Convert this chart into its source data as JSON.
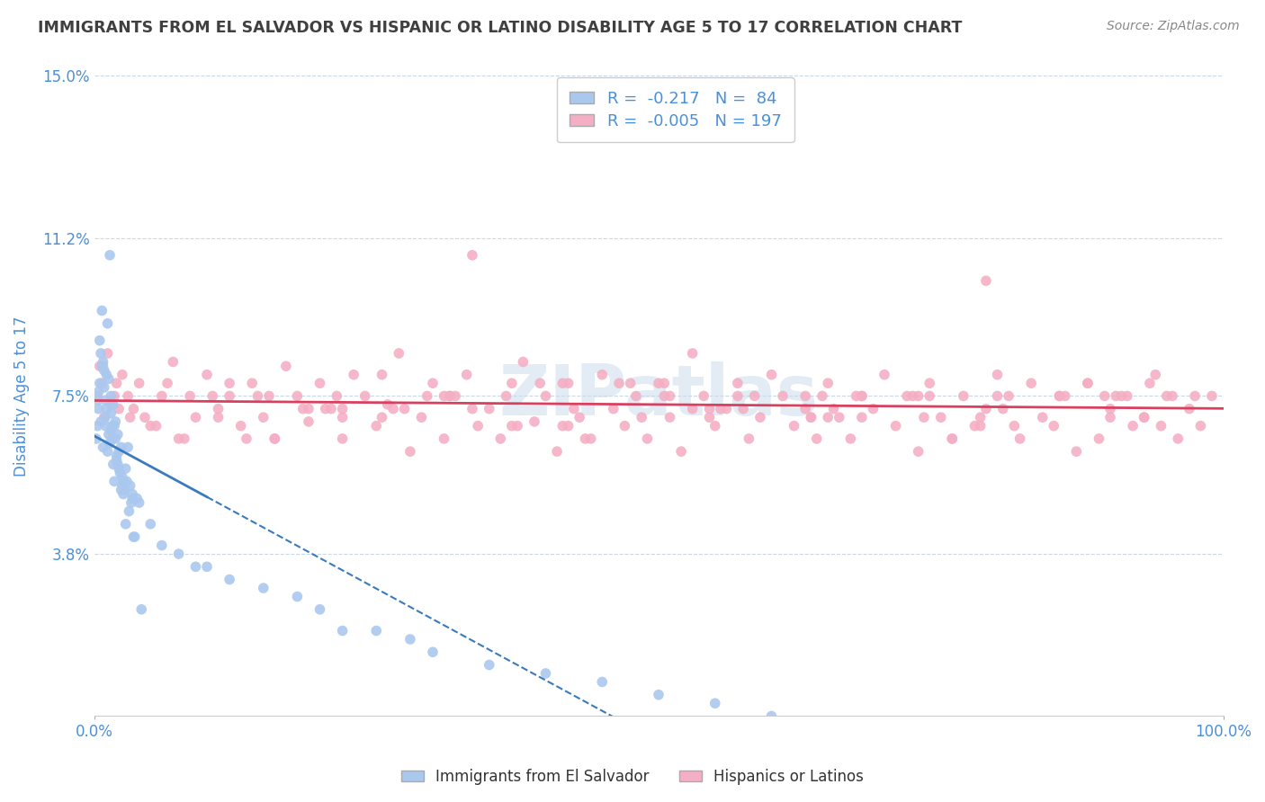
{
  "title": "IMMIGRANTS FROM EL SALVADOR VS HISPANIC OR LATINO DISABILITY AGE 5 TO 17 CORRELATION CHART",
  "source": "Source: ZipAtlas.com",
  "ylabel": "Disability Age 5 to 17",
  "xlim": [
    0,
    100
  ],
  "ylim": [
    0,
    15.0
  ],
  "yticks": [
    3.8,
    7.5,
    11.2,
    15.0
  ],
  "ytick_labels": [
    "3.8%",
    "7.5%",
    "11.2%",
    "15.0%"
  ],
  "xticks": [
    0,
    100
  ],
  "xtick_labels": [
    "0.0%",
    "100.0%"
  ],
  "blue_color": "#aac8ee",
  "pink_color": "#f4afc4",
  "blue_line_color": "#3a7abf",
  "pink_line_color": "#d94060",
  "blue_R": -0.217,
  "blue_N": 84,
  "pink_R": -0.005,
  "pink_N": 197,
  "legend_label_blue": "Immigrants from El Salvador",
  "legend_label_pink": "Hispanics or Latinos",
  "watermark": "ZIPatlas",
  "background_color": "#ffffff",
  "grid_color": "#c8d8e8",
  "title_color": "#404040",
  "tick_label_color": "#4a90d9",
  "blue_scatter_x": [
    0.2,
    0.3,
    0.3,
    0.4,
    0.4,
    0.5,
    0.5,
    0.6,
    0.6,
    0.7,
    0.7,
    0.8,
    0.8,
    0.9,
    0.9,
    1.0,
    1.0,
    1.0,
    1.1,
    1.1,
    1.2,
    1.2,
    1.3,
    1.3,
    1.4,
    1.4,
    1.5,
    1.5,
    1.5,
    1.6,
    1.6,
    1.7,
    1.7,
    1.8,
    1.8,
    1.9,
    1.9,
    2.0,
    2.0,
    2.1,
    2.1,
    2.2,
    2.2,
    2.3,
    2.4,
    2.4,
    2.5,
    2.5,
    2.6,
    2.6,
    2.7,
    2.8,
    2.8,
    2.9,
    3.0,
    3.1,
    3.2,
    3.3,
    3.4,
    3.4,
    3.5,
    3.6,
    3.8,
    4.0,
    4.2,
    5.0,
    6.0,
    7.5,
    9.0,
    10.0,
    12.0,
    15.0,
    18.0,
    20.0,
    22.0,
    25.0,
    28.0,
    30.0,
    35.0,
    40.0,
    45.0,
    50.0,
    55.0,
    60.0
  ],
  "blue_scatter_y": [
    6.5,
    7.4,
    6.8,
    7.6,
    7.2,
    7.8,
    8.8,
    8.5,
    6.9,
    8.2,
    9.5,
    8.3,
    6.3,
    7.7,
    8.1,
    7.0,
    7.4,
    6.8,
    7.2,
    8.0,
    6.2,
    9.2,
    7.9,
    6.6,
    6.4,
    10.8,
    7.5,
    6.7,
    7.1,
    6.5,
    6.8,
    7.3,
    5.9,
    5.5,
    6.8,
    6.9,
    6.5,
    6.1,
    6.0,
    6.6,
    5.9,
    5.8,
    6.2,
    5.7,
    5.3,
    6.3,
    5.6,
    5.4,
    5.5,
    5.2,
    5.3,
    5.8,
    4.5,
    5.5,
    6.3,
    4.8,
    5.4,
    5.0,
    5.1,
    5.2,
    4.2,
    4.2,
    5.1,
    5.0,
    2.5,
    4.5,
    4.0,
    3.8,
    3.5,
    3.5,
    3.2,
    3.0,
    2.8,
    2.5,
    2.0,
    2.0,
    1.8,
    1.5,
    1.2,
    1.0,
    0.8,
    0.5,
    0.3,
    0.0
  ],
  "pink_scatter_x": [
    0.3,
    0.5,
    0.7,
    0.9,
    1.2,
    1.5,
    2.0,
    2.5,
    3.0,
    3.5,
    4.0,
    5.0,
    6.0,
    7.0,
    8.0,
    9.0,
    10.0,
    11.0,
    12.0,
    13.0,
    14.0,
    15.0,
    16.0,
    17.0,
    18.0,
    19.0,
    20.0,
    21.0,
    22.0,
    23.0,
    24.0,
    25.0,
    26.0,
    27.0,
    28.0,
    29.0,
    30.0,
    31.0,
    32.0,
    33.0,
    34.0,
    35.0,
    36.0,
    37.0,
    38.0,
    39.0,
    40.0,
    41.0,
    42.0,
    43.0,
    44.0,
    45.0,
    46.0,
    47.0,
    48.0,
    49.0,
    50.0,
    51.0,
    52.0,
    53.0,
    54.0,
    55.0,
    56.0,
    57.0,
    58.0,
    59.0,
    60.0,
    61.0,
    62.0,
    63.0,
    64.0,
    65.0,
    66.0,
    67.0,
    68.0,
    69.0,
    70.0,
    71.0,
    72.0,
    73.0,
    74.0,
    75.0,
    76.0,
    77.0,
    78.0,
    79.0,
    80.0,
    81.0,
    82.0,
    83.0,
    84.0,
    85.0,
    86.0,
    87.0,
    88.0,
    89.0,
    90.0,
    91.0,
    92.0,
    93.0,
    94.0,
    95.0,
    96.0,
    97.0,
    98.0,
    99.0,
    0.8,
    1.8,
    3.2,
    5.5,
    8.5,
    12.0,
    16.0,
    20.5,
    25.5,
    31.0,
    37.0,
    43.5,
    50.5,
    57.5,
    65.0,
    73.0,
    81.5,
    90.5,
    2.2,
    6.5,
    13.5,
    22.0,
    31.5,
    42.0,
    53.0,
    64.5,
    76.0,
    88.0,
    4.5,
    10.5,
    19.0,
    29.5,
    41.5,
    54.5,
    67.5,
    80.5,
    93.5,
    7.5,
    15.5,
    25.5,
    37.5,
    51.0,
    65.5,
    80.0,
    94.5,
    11.0,
    21.5,
    33.5,
    47.5,
    63.0,
    78.5,
    93.0,
    14.5,
    27.5,
    41.5,
    57.0,
    73.5,
    89.5,
    18.5,
    33.5,
    50.5,
    68.0,
    85.5,
    22.0,
    39.5,
    58.5,
    78.5,
    97.5,
    26.5,
    46.5,
    68.0,
    90.0,
    31.5,
    54.5,
    79.0,
    36.5,
    63.5,
    91.5,
    42.5,
    74.0,
    48.5,
    85.5,
    55.5,
    95.5,
    63.5,
    72.5,
    82.0,
    92.0
  ],
  "pink_scatter_y": [
    7.5,
    8.2,
    7.8,
    7.0,
    8.5,
    7.3,
    7.8,
    8.0,
    7.5,
    7.2,
    7.8,
    6.8,
    7.5,
    8.3,
    6.5,
    7.0,
    8.0,
    7.2,
    7.5,
    6.8,
    7.8,
    7.0,
    6.5,
    8.2,
    7.5,
    6.9,
    7.8,
    7.2,
    6.5,
    8.0,
    7.5,
    6.8,
    7.3,
    8.5,
    6.2,
    7.0,
    7.8,
    6.5,
    7.5,
    8.0,
    6.8,
    7.2,
    6.5,
    7.8,
    8.3,
    6.9,
    7.5,
    6.2,
    7.8,
    7.0,
    6.5,
    8.0,
    7.2,
    6.8,
    7.5,
    6.5,
    7.8,
    7.0,
    6.2,
    8.5,
    7.5,
    6.8,
    7.2,
    7.8,
    6.5,
    7.0,
    8.0,
    7.5,
    6.8,
    7.2,
    6.5,
    7.8,
    7.0,
    6.5,
    7.5,
    7.2,
    8.0,
    6.8,
    7.5,
    6.2,
    7.8,
    7.0,
    6.5,
    7.5,
    6.8,
    7.2,
    8.0,
    7.5,
    6.5,
    7.8,
    7.0,
    6.8,
    7.5,
    6.2,
    7.8,
    6.5,
    7.2,
    7.5,
    6.8,
    7.0,
    8.0,
    7.5,
    6.5,
    7.2,
    6.8,
    7.5,
    8.2,
    7.5,
    7.0,
    6.8,
    7.5,
    7.8,
    6.5,
    7.2,
    8.0,
    7.5,
    6.8,
    6.5,
    7.8,
    7.2,
    7.0,
    7.5,
    6.8,
    7.5,
    7.2,
    7.8,
    6.5,
    7.0,
    7.5,
    6.8,
    7.2,
    7.5,
    6.5,
    7.8,
    7.0,
    7.5,
    7.2,
    7.5,
    6.8,
    7.0,
    7.5,
    7.2,
    7.8,
    6.5,
    7.5,
    7.0,
    6.8,
    7.5,
    7.2,
    7.5,
    6.8,
    7.0,
    7.5,
    7.2,
    7.8,
    7.5,
    6.8,
    7.0,
    7.5,
    7.2,
    7.8,
    7.5,
    7.0,
    7.5,
    7.2,
    10.8,
    7.5,
    7.0,
    7.5,
    7.2,
    7.8,
    7.5,
    7.0,
    7.5,
    7.2,
    7.8,
    7.5,
    7.0,
    7.5,
    7.2,
    10.2,
    7.5,
    7.0,
    7.5,
    7.2,
    7.5,
    7.0,
    7.5,
    7.2,
    7.5,
    7.0,
    7.5
  ]
}
